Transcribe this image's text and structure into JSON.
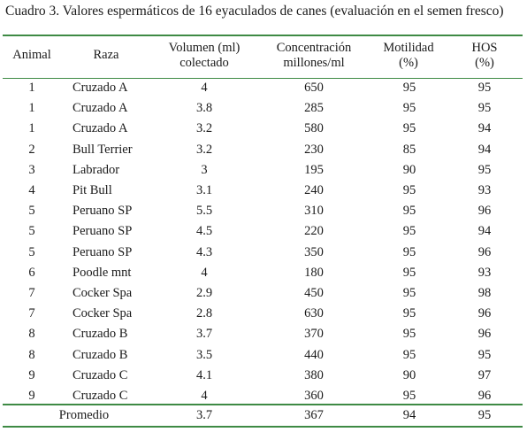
{
  "caption": "Cuadro 3. Valores espermáticos de 16 eyaculados de canes (evaluación en el semen fresco)",
  "headers": {
    "animal": [
      "Animal"
    ],
    "raza": [
      "Raza"
    ],
    "volumen": [
      "Volumen (ml)",
      "colectado"
    ],
    "concentracion": [
      "Concentración",
      "millones/ml"
    ],
    "motilidad": [
      "Motilidad",
      "(%)"
    ],
    "hos": [
      "HOS",
      "(%)"
    ]
  },
  "rows": [
    [
      "1",
      "Cruzado A",
      "4",
      "650",
      "95",
      "95"
    ],
    [
      "1",
      "Cruzado A",
      "3.8",
      "285",
      "95",
      "95"
    ],
    [
      "1",
      "Cruzado A",
      "3.2",
      "580",
      "95",
      "94"
    ],
    [
      "2",
      "Bull Terrier",
      "3.2",
      "230",
      "85",
      "94"
    ],
    [
      "3",
      "Labrador",
      "3",
      "195",
      "90",
      "95"
    ],
    [
      "4",
      "Pit Bull",
      "3.1",
      "240",
      "95",
      "93"
    ],
    [
      "5",
      "Peruano SP",
      "5.5",
      "310",
      "95",
      "96"
    ],
    [
      "5",
      "Peruano SP",
      "4.5",
      "220",
      "95",
      "94"
    ],
    [
      "5",
      "Peruano SP",
      "4.3",
      "350",
      "95",
      "96"
    ],
    [
      "6",
      "Poodle mnt",
      "4",
      "180",
      "95",
      "93"
    ],
    [
      "7",
      "Cocker Spa",
      "2.9",
      "450",
      "95",
      "98"
    ],
    [
      "7",
      "Cocker Spa",
      "2.8",
      "630",
      "95",
      "96"
    ],
    [
      "8",
      "Cruzado B",
      "3.7",
      "370",
      "95",
      "96"
    ],
    [
      "8",
      "Cruzado B",
      "3.5",
      "440",
      "95",
      "95"
    ],
    [
      "9",
      "Cruzado C",
      "4.1",
      "380",
      "90",
      "97"
    ],
    [
      "9",
      "Cruzado C",
      "4",
      "360",
      "95",
      "96"
    ]
  ],
  "average": {
    "label": "Promedio",
    "volumen": "3.7",
    "concentracion": "367",
    "motilidad": "94",
    "hos": "95"
  },
  "colors": {
    "rule": "#3e8a44"
  }
}
